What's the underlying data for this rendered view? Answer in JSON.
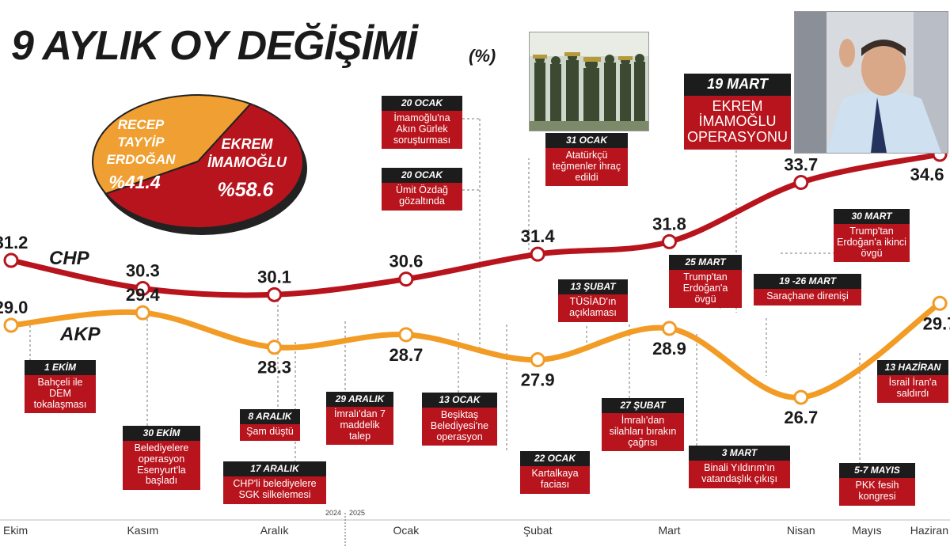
{
  "title": "9 AYLIK OY DEĞİŞİMİ",
  "title_unit": "(%)",
  "pie": {
    "slices": [
      {
        "name_lines": [
          "RECEP",
          "TAYYİP",
          "ERDOĞAN"
        ],
        "value_label": "%41.4",
        "value": 41.4,
        "color": "#f0a032"
      },
      {
        "name_lines": [
          "EKREM",
          "İMAMOĞLU"
        ],
        "value_label": "%58.6",
        "value": 58.6,
        "color": "#b8141d"
      }
    ]
  },
  "chart_data": {
    "type": "line",
    "x": [
      "Ekim",
      "Kasım",
      "Aralık",
      "Ocak",
      "Şubat",
      "Mart",
      "Nisan",
      "Mayıs",
      "Haziran"
    ],
    "x_positions": [
      0,
      1,
      2,
      3,
      4,
      5,
      6,
      6.5,
      7
    ],
    "year_labels": [
      "2024",
      "2025"
    ],
    "series": [
      {
        "name": "CHP",
        "color": "#b8141d",
        "x": [
          0,
          1,
          2,
          3,
          4,
          5,
          6,
          7
        ],
        "values": [
          31.2,
          30.3,
          30.1,
          30.6,
          31.4,
          31.8,
          33.7,
          34.6
        ],
        "labels": [
          "31.2",
          "30.3",
          "30.1",
          "30.6",
          "31.4",
          "31.8",
          "33.7",
          "34.6"
        ]
      },
      {
        "name": "AKP",
        "color": "#f29b25",
        "x": [
          0,
          1,
          2,
          3,
          4,
          5,
          6,
          7
        ],
        "values": [
          29.0,
          29.4,
          28.3,
          28.7,
          27.9,
          28.9,
          26.7,
          29.7
        ],
        "labels": [
          "29.0",
          "29.4",
          "28.3",
          "28.7",
          "27.9",
          "28.9",
          "26.7",
          "29.7"
        ]
      }
    ],
    "grid": false,
    "legend": "inline labels"
  },
  "events": [
    {
      "date": "1 EKİM",
      "text": "Bahçeli ile DEM tokalaşması"
    },
    {
      "date": "30 EKİM",
      "text": "Belediyelere operasyon Esenyurt'la başladı"
    },
    {
      "date": "8 ARALIK",
      "text": "Şam düştü"
    },
    {
      "date": "17 ARALIK",
      "text": "CHP'li belediyelere SGK silkelemesi"
    },
    {
      "date": "29 ARALIK",
      "text": "İmralı'dan 7 maddelik talep"
    },
    {
      "date": "20 OCAK",
      "text": "İmamoğlu'na Akın Gürlek soruşturması"
    },
    {
      "date": "20 OCAK",
      "text": "Ümit Özdağ gözaltında"
    },
    {
      "date": "13 OCAK",
      "text": "Beşiktaş Belediyesi'ne operasyon"
    },
    {
      "date": "22 OCAK",
      "text": "Kartalkaya faciası"
    },
    {
      "date": "31 OCAK",
      "text": "Atatürkçü teğmenler ihraç edildi"
    },
    {
      "date": "13 ŞUBAT",
      "text": "TÜSİAD'ın açıklaması"
    },
    {
      "date": "27 ŞUBAT",
      "text": "İmralı'dan silahları bırakın çağrısı"
    },
    {
      "date": "19 MART",
      "text": "EKREM İMAMOĞLU OPERASYONU"
    },
    {
      "date": "25 MART",
      "text": "Trump'tan Erdoğan'a övgü"
    },
    {
      "date": "3 MART",
      "text": "Binali Yıldırım'ın vatandaşlık çıkışı"
    },
    {
      "date": "19 -26 MART",
      "text": "Saraçhane direnişi"
    },
    {
      "date": "30 MART",
      "text": "Trump'tan Erdoğan'a ikinci övgü"
    },
    {
      "date": "5-7 MAYIS",
      "text": "PKK fesih kongresi"
    },
    {
      "date": "13 HAZİRAN",
      "text": "İsrail İran'a saldırdı"
    }
  ],
  "photos": [
    {
      "icon": "soldiers-photo-icon",
      "scene": "soldiers-photo"
    },
    {
      "icon": "imamoglu-photo-icon",
      "scene": "portrait-photo"
    }
  ]
}
